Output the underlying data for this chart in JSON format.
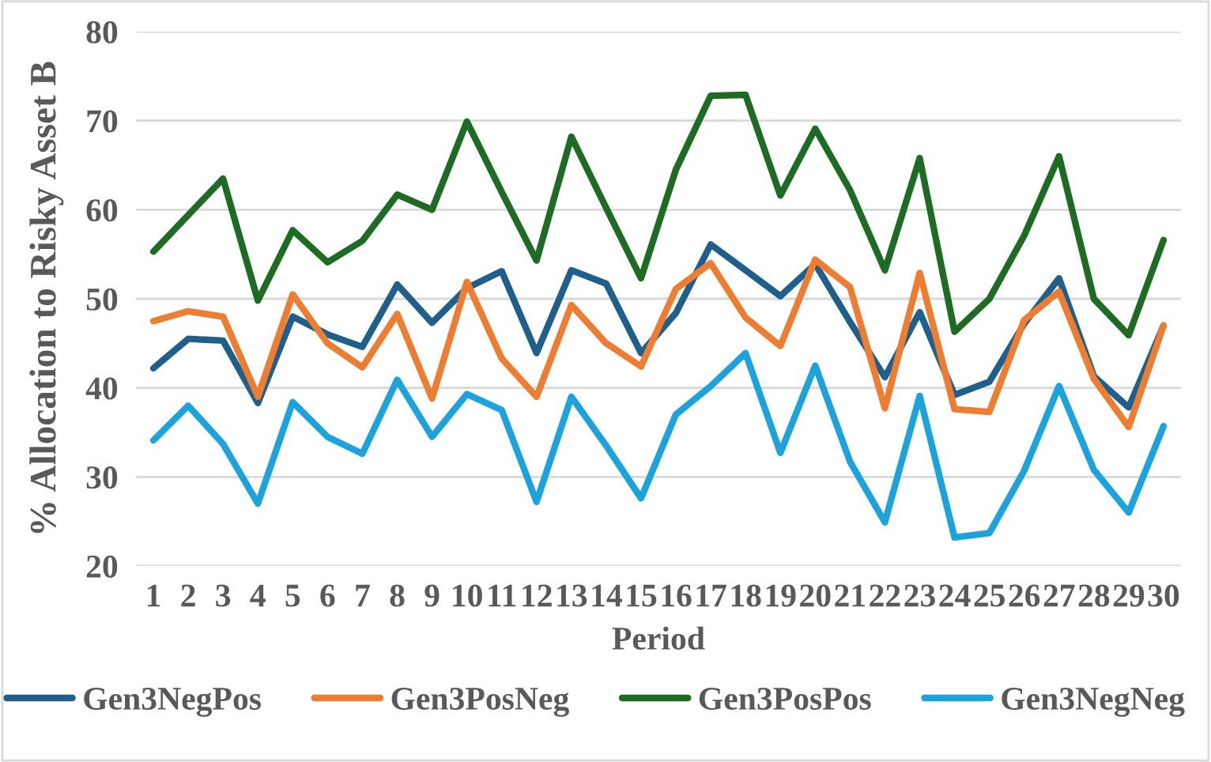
{
  "chart_data": {
    "type": "line",
    "xlabel": "Period",
    "ylabel": "% Allocation to Risky Asset B",
    "categories": [
      "1",
      "2",
      "3",
      "4",
      "5",
      "6",
      "7",
      "8",
      "9",
      "10",
      "11",
      "12",
      "13",
      "14",
      "15",
      "16",
      "17",
      "18",
      "19",
      "20",
      "21",
      "22",
      "23",
      "24",
      "25",
      "26",
      "27",
      "28",
      "29",
      "30"
    ],
    "ylim": [
      20,
      80
    ],
    "yticks": [
      20,
      30,
      40,
      50,
      60,
      70,
      80
    ],
    "grid": "y",
    "legend": "bottom",
    "marker": "none",
    "line_style": "solid",
    "series": [
      {
        "name": "Gen3NegPos",
        "color": "#1f5f8b",
        "values": [
          42.2,
          45.5,
          45.3,
          38.3,
          48,
          46,
          44.6,
          51.6,
          47.3,
          51.2,
          53.1,
          43.9,
          53.2,
          51.7,
          43.9,
          48.4,
          56.1,
          53.2,
          50.3,
          53.9,
          47.4,
          41.2,
          48.5,
          39.2,
          40.7,
          47.2,
          52.3,
          41.3,
          37.8,
          47
        ]
      },
      {
        "name": "Gen3PosNeg",
        "color": "#ed7d31",
        "values": [
          47.5,
          48.6,
          48,
          39,
          50.5,
          45,
          42.3,
          48.3,
          38.8,
          51.9,
          43.3,
          39,
          49.3,
          45,
          42.4,
          51.1,
          54,
          47.9,
          44.7,
          54.4,
          51.3,
          37.7,
          52.9,
          37.6,
          37.3,
          47.6,
          50.8,
          41,
          35.6,
          47
        ]
      },
      {
        "name": "Gen3PosPos",
        "color": "#1e6b24",
        "values": [
          55.3,
          59.4,
          63.5,
          49.8,
          57.7,
          54.1,
          56.5,
          61.7,
          60,
          69.9,
          62,
          54.3,
          68.2,
          60.2,
          52.3,
          64.5,
          72.8,
          72.9,
          61.6,
          69.1,
          62.2,
          53.2,
          65.8,
          46.3,
          50,
          57.1,
          66,
          50,
          45.9,
          56.6
        ]
      },
      {
        "name": "Gen3NegNeg",
        "color": "#1ca3dc",
        "values": [
          34.1,
          38,
          33.7,
          27,
          38.4,
          34.5,
          32.6,
          40.9,
          34.5,
          39.3,
          37.5,
          27.2,
          39,
          33.5,
          27.6,
          37,
          40.2,
          43.9,
          32.7,
          42.5,
          31.7,
          24.9,
          39.1,
          23.2,
          23.7,
          30.7,
          40.2,
          30.8,
          26,
          35.7
        ]
      }
    ]
  }
}
